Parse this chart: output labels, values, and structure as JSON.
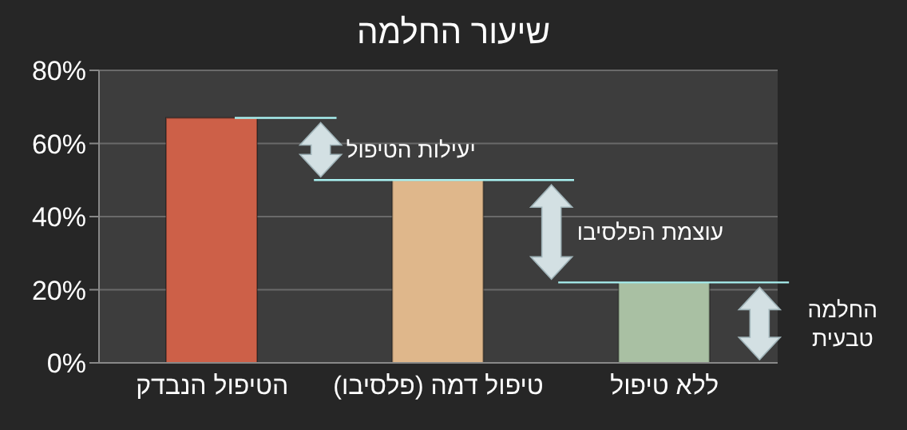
{
  "chart_data": {
    "type": "bar",
    "title": "שיעור החלמה",
    "categories": [
      "הטיפול הנבדק",
      "טיפול דמה (פלסיבו)",
      "ללא טיפול"
    ],
    "values": [
      67,
      50,
      22
    ],
    "colors": [
      "#cd6048",
      "#dfb78b",
      "#a9c0a3"
    ],
    "ylim": [
      0,
      80
    ],
    "yticks": [
      {
        "value": 0,
        "label": "0%"
      },
      {
        "value": 20,
        "label": "20%"
      },
      {
        "value": 40,
        "label": "40%"
      },
      {
        "value": 60,
        "label": "60%"
      },
      {
        "value": 80,
        "label": "80%"
      }
    ],
    "grid": "y",
    "legend": false,
    "ref_lines": [
      {
        "axis": "y",
        "value": 67,
        "color": "#a8f0f0"
      },
      {
        "axis": "y",
        "value": 50,
        "color": "#a8f0f0"
      },
      {
        "axis": "y",
        "value": 22,
        "color": "#a8f0f0"
      }
    ],
    "annotations": [
      "יעילות הטיפול",
      "עוצמת הפלסיבו",
      "החלמה טבעית"
    ]
  }
}
